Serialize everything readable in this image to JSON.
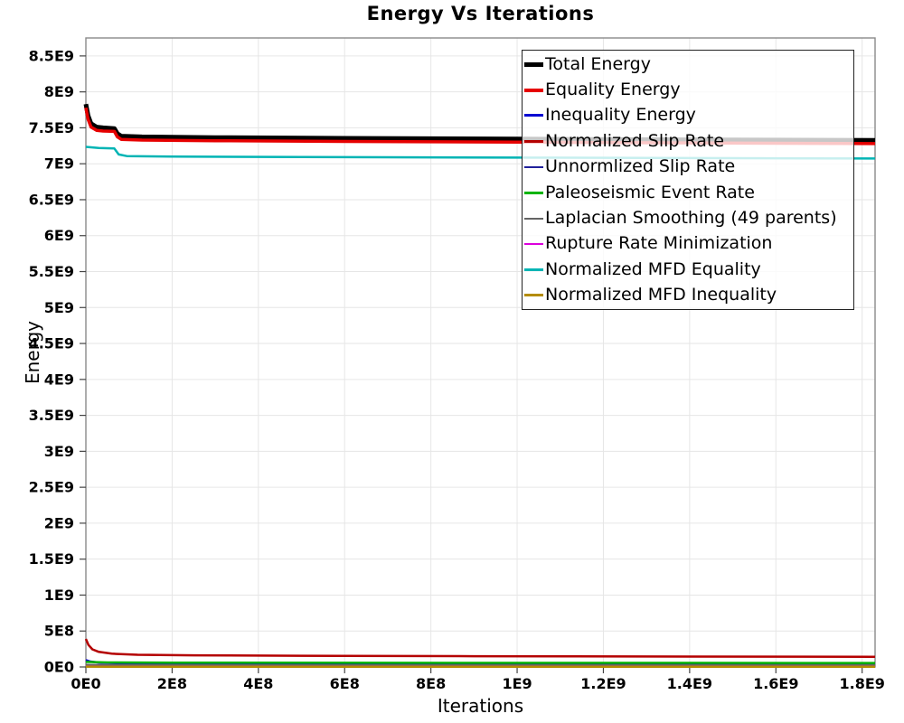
{
  "chart_data": {
    "type": "line",
    "title": "Energy Vs Iterations",
    "xlabel": "Iterations",
    "ylabel": "Energy",
    "xlim": [
      0,
      1830000000.0
    ],
    "ylim": [
      0,
      8750000000.0
    ],
    "grid": true,
    "legend_position": "top-right-inside",
    "legend_background": "rgba(255,255,255,0.78)",
    "xticks": [
      {
        "value": 0,
        "label": "0E0"
      },
      {
        "value": 200000000.0,
        "label": "2E8"
      },
      {
        "value": 400000000.0,
        "label": "4E8"
      },
      {
        "value": 600000000.0,
        "label": "6E8"
      },
      {
        "value": 800000000.0,
        "label": "8E8"
      },
      {
        "value": 1000000000.0,
        "label": "1E9"
      },
      {
        "value": 1200000000.0,
        "label": "1.2E9"
      },
      {
        "value": 1400000000.0,
        "label": "1.4E9"
      },
      {
        "value": 1600000000.0,
        "label": "1.6E9"
      },
      {
        "value": 1800000000.0,
        "label": "1.8E9"
      }
    ],
    "yticks": [
      {
        "value": 0,
        "label": "0E0"
      },
      {
        "value": 500000000.0,
        "label": "5E8"
      },
      {
        "value": 1000000000.0,
        "label": "1E9"
      },
      {
        "value": 1500000000.0,
        "label": "1.5E9"
      },
      {
        "value": 2000000000.0,
        "label": "2E9"
      },
      {
        "value": 2500000000.0,
        "label": "2.5E9"
      },
      {
        "value": 3000000000.0,
        "label": "3E9"
      },
      {
        "value": 3500000000.0,
        "label": "3.5E9"
      },
      {
        "value": 4000000000.0,
        "label": "4E9"
      },
      {
        "value": 4500000000.0,
        "label": "4.5E9"
      },
      {
        "value": 5000000000.0,
        "label": "5E9"
      },
      {
        "value": 5500000000.0,
        "label": "5.5E9"
      },
      {
        "value": 6000000000.0,
        "label": "6E9"
      },
      {
        "value": 6500000000.0,
        "label": "6.5E9"
      },
      {
        "value": 7000000000.0,
        "label": "7E9"
      },
      {
        "value": 7500000000.0,
        "label": "7.5E9"
      },
      {
        "value": 8000000000.0,
        "label": "8E9"
      },
      {
        "value": 8500000000.0,
        "label": "8.5E9"
      }
    ],
    "series": [
      {
        "name": "Total Energy",
        "color": "#000000",
        "line_width": 5,
        "x": [
          0,
          5000000.0,
          12000000.0,
          25000000.0,
          40000000.0,
          66000000.0,
          73000000.0,
          82000000.0,
          130000000.0,
          300000000.0,
          600000000.0,
          1000000000.0,
          1400000000.0,
          1830000000.0
        ],
        "y": [
          7830000000.0,
          7670000000.0,
          7560000000.0,
          7510000000.0,
          7500000000.0,
          7490000000.0,
          7420000000.0,
          7385000000.0,
          7375000000.0,
          7365000000.0,
          7355000000.0,
          7345000000.0,
          7335000000.0,
          7325000000.0
        ]
      },
      {
        "name": "Equality Energy",
        "color": "#e60000",
        "line_width": 3.5,
        "x": [
          0,
          5000000.0,
          12000000.0,
          25000000.0,
          40000000.0,
          66000000.0,
          73000000.0,
          82000000.0,
          130000000.0,
          300000000.0,
          600000000.0,
          1000000000.0,
          1400000000.0,
          1830000000.0
        ],
        "y": [
          7780000000.0,
          7620000000.0,
          7510000000.0,
          7465000000.0,
          7455000000.0,
          7450000000.0,
          7375000000.0,
          7340000000.0,
          7330000000.0,
          7320000000.0,
          7310000000.0,
          7300000000.0,
          7290000000.0,
          7280000000.0
        ]
      },
      {
        "name": "Inequality Energy",
        "color": "#0000d2",
        "line_width": 2.5,
        "x": [
          0,
          10000000.0,
          30000000.0,
          70000000.0,
          150000000.0,
          400000000.0,
          800000000.0,
          1300000000.0,
          1830000000.0
        ],
        "y": [
          95000000.0,
          76000000.0,
          62000000.0,
          54000000.0,
          48000000.0,
          43000000.0,
          40000000.0,
          38000000.0,
          37000000.0
        ]
      },
      {
        "name": "Normalized Slip Rate",
        "color": "#b40000",
        "line_width": 2.5,
        "x": [
          0,
          6000000.0,
          15000000.0,
          30000000.0,
          60000000.0,
          120000000.0,
          250000000.0,
          500000000.0,
          900000000.0,
          1400000000.0,
          1830000000.0
        ],
        "y": [
          390000000.0,
          305000000.0,
          245000000.0,
          210000000.0,
          185000000.0,
          170000000.0,
          162000000.0,
          156000000.0,
          150000000.0,
          145000000.0,
          142000000.0
        ]
      },
      {
        "name": "Unnormlized Slip Rate",
        "color": "#20209b",
        "line_width": 2,
        "x": [
          0,
          50000000.0,
          300000000.0,
          1000000000.0,
          1830000000.0
        ],
        "y": [
          22000000.0,
          17000000.0,
          15000000.0,
          14000000.0,
          14000000.0
        ]
      },
      {
        "name": "Paleoseismic Event Rate",
        "color": "#00b400",
        "line_width": 2.5,
        "x": [
          0,
          50000000.0,
          200000000.0,
          600000000.0,
          1200000000.0,
          1830000000.0
        ],
        "y": [
          70000000.0,
          63000000.0,
          60000000.0,
          58000000.0,
          56000000.0,
          55000000.0
        ]
      },
      {
        "name": "Laplacian Smoothing (49 parents)",
        "color": "#646464",
        "line_width": 2,
        "x": [
          0,
          50000000.0,
          300000000.0,
          1000000000.0,
          1830000000.0
        ],
        "y": [
          32000000.0,
          28000000.0,
          26000000.0,
          25000000.0,
          25000000.0
        ]
      },
      {
        "name": "Rupture Rate Minimization",
        "color": "#dc00dc",
        "line_width": 2,
        "x": [
          0,
          50000000.0,
          1830000000.0
        ],
        "y": [
          10000000.0,
          8000000.0,
          8000000.0
        ]
      },
      {
        "name": "Normalized MFD Equality",
        "color": "#00b4b4",
        "line_width": 2.5,
        "x": [
          0,
          30000000.0,
          66000000.0,
          76000000.0,
          95000000.0,
          200000000.0,
          500000000.0,
          1000000000.0,
          1500000000.0,
          1830000000.0
        ],
        "y": [
          7235000000.0,
          7220000000.0,
          7212000000.0,
          7130000000.0,
          7107000000.0,
          7100000000.0,
          7093000000.0,
          7085000000.0,
          7078000000.0,
          7073000000.0
        ]
      },
      {
        "name": "Normalized MFD Inequality",
        "color": "#b48c00",
        "line_width": 2.5,
        "x": [
          0,
          50000000.0,
          1830000000.0
        ],
        "y": [
          5000000.0,
          3000000.0,
          3000000.0
        ]
      }
    ]
  }
}
